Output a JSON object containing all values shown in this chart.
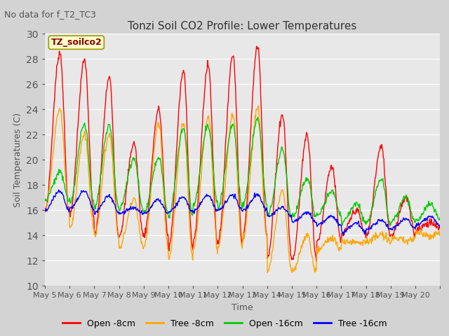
{
  "title": "Tonzi Soil CO2 Profile: Lower Temperatures",
  "subtitle": "No data for f_T2_TC3",
  "legend_label": "TZ_soilco2",
  "ylabel": "Soil Temperatures (C)",
  "xlabel": "Time",
  "ylim": [
    10,
    30
  ],
  "yticks": [
    10,
    12,
    14,
    16,
    18,
    20,
    22,
    24,
    26,
    28,
    30
  ],
  "fig_bg": "#d3d3d3",
  "plot_bg": "#e8e8e8",
  "series_colors": {
    "open_8cm": "#ff0000",
    "tree_8cm": "#ffa500",
    "open_16cm": "#00cc00",
    "tree_16cm": "#0000ff"
  },
  "series_labels": [
    "Open -8cm",
    "Tree -8cm",
    "Open -16cm",
    "Tree -16cm"
  ],
  "x_tick_labels": [
    "May 5",
    "May 6",
    "May 7",
    "May 8",
    "May 9",
    "May 10",
    "May 11",
    "May 12",
    "May 13",
    "May 14",
    "May 15",
    "May 16",
    "May 17",
    "May 18",
    "May 19",
    "May 20"
  ],
  "n_days": 16,
  "pts_per_day": 48
}
